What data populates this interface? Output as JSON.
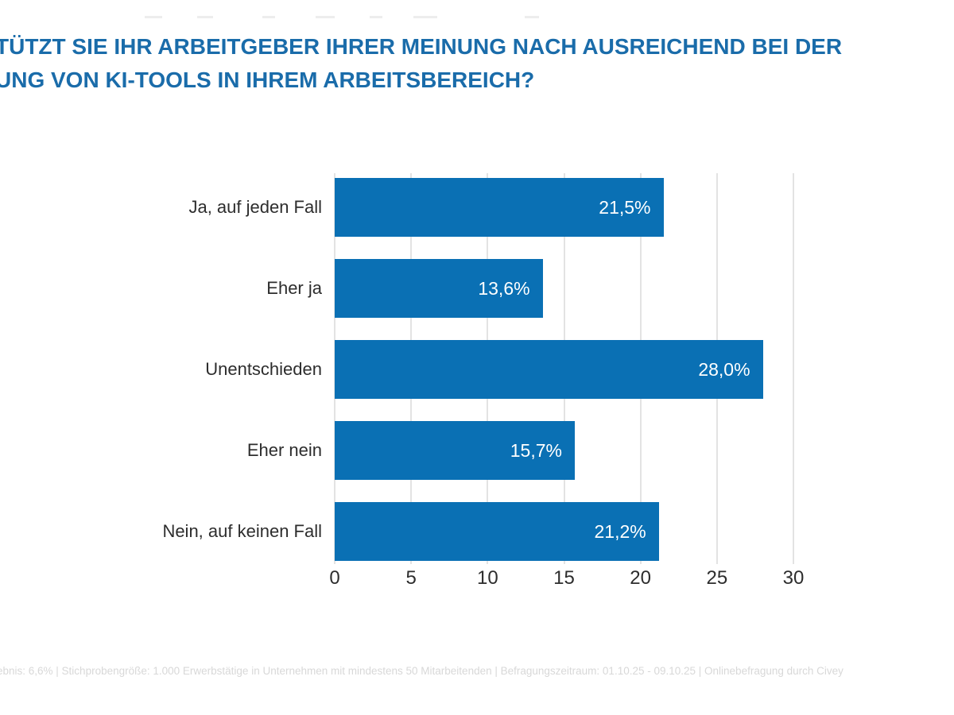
{
  "title": {
    "line1": "TÜTZT SIE IHR ARBEITGEBER IHRER MEINUNG NACH AUSREICHEND BEI DER",
    "line2": "UNG VON KI-TOOLS IN IHREM ARBEITSBEREICH?"
  },
  "footer": {
    "text": "ebnis: 6,6% | Stichprobengröße: 1.000 Erwerbstätige in Unternehmen mit mindestens 50 Mitarbeitenden | Befragungszeitraum: 01.10.25 - 09.10.25 | Onlinebefragung durch Civey"
  },
  "colors": {
    "bar": "#0a70b4",
    "title": "#1a6caa",
    "grid": "#e3e3e3",
    "axis_text": "#2d2d2d",
    "label_text": "#2d2d2d",
    "value_text": "#ffffff",
    "footer_text": "#d8d8d8"
  },
  "chart_data": {
    "type": "bar",
    "orientation": "horizontal",
    "title": "TÜTZT SIE IHR ARBEITGEBER IHRER MEINUNG NACH AUSREICHEND BEI DER UNG VON KI-TOOLS IN IHREM ARBEITSBEREICH?",
    "categories": [
      "Ja, auf jeden Fall",
      "Eher ja",
      "Unentschieden",
      "Eher nein",
      "Nein, auf keinen Fall"
    ],
    "values": [
      21.5,
      13.6,
      28.0,
      15.7,
      21.2
    ],
    "value_labels": [
      "21,5%",
      "13,6%",
      "28,0%",
      "15,7%",
      "21,2%"
    ],
    "xlabel": "",
    "ylabel": "",
    "x_ticks": [
      0,
      5,
      10,
      15,
      20,
      25,
      30
    ],
    "xlim": [
      0,
      30
    ],
    "grid": true,
    "legend": false,
    "value_label_position": "inside-end"
  }
}
